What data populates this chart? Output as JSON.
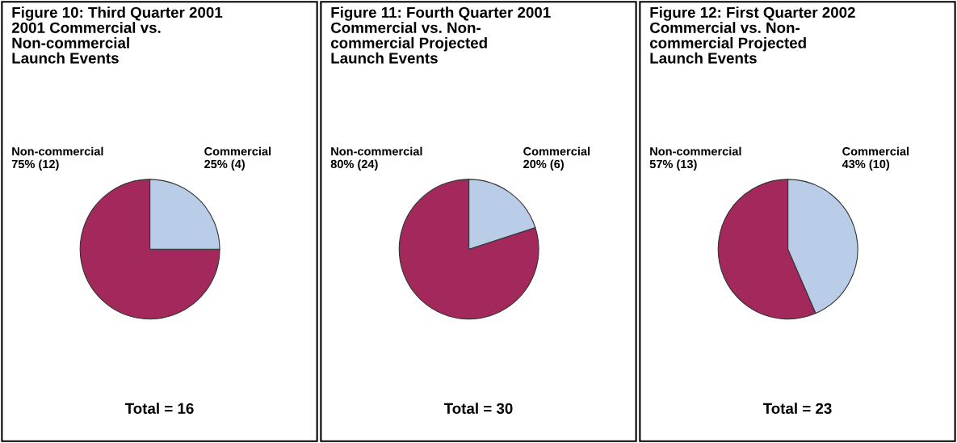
{
  "chart_data": [
    {
      "type": "pie",
      "title": "Figure 10: Third Quarter 2001\n2001 Commercial vs.\nNon-commercial\nLaunch Events",
      "categories": [
        "Non-commercial",
        "Commercial"
      ],
      "values": [
        12,
        4
      ],
      "value_labels": [
        "75% (12)",
        "25% (4)"
      ],
      "colors": [
        "#a3285c",
        "#b9cde8"
      ],
      "annotations": [
        "Total = 16"
      ]
    },
    {
      "type": "pie",
      "title": "Figure 11: Fourth Quarter 2001\nCommercial vs. Non-\ncommercial Projected\nLaunch Events",
      "categories": [
        "Non-commercial",
        "Commercial"
      ],
      "values": [
        24,
        6
      ],
      "value_labels": [
        "80% (24)",
        "20% (6)"
      ],
      "colors": [
        "#a3285c",
        "#b9cde8"
      ],
      "annotations": [
        "Total = 30"
      ]
    },
    {
      "type": "pie",
      "title": "Figure 12: First Quarter 2002\nCommercial vs. Non-\ncommercial Projected\nLaunch Events",
      "categories": [
        "Non-commercial",
        "Commercial"
      ],
      "values": [
        13,
        10
      ],
      "value_labels": [
        "57% (13)",
        "43% (10)"
      ],
      "colors": [
        "#a3285c",
        "#b9cde8"
      ],
      "annotations": [
        "Total = 23"
      ]
    }
  ]
}
